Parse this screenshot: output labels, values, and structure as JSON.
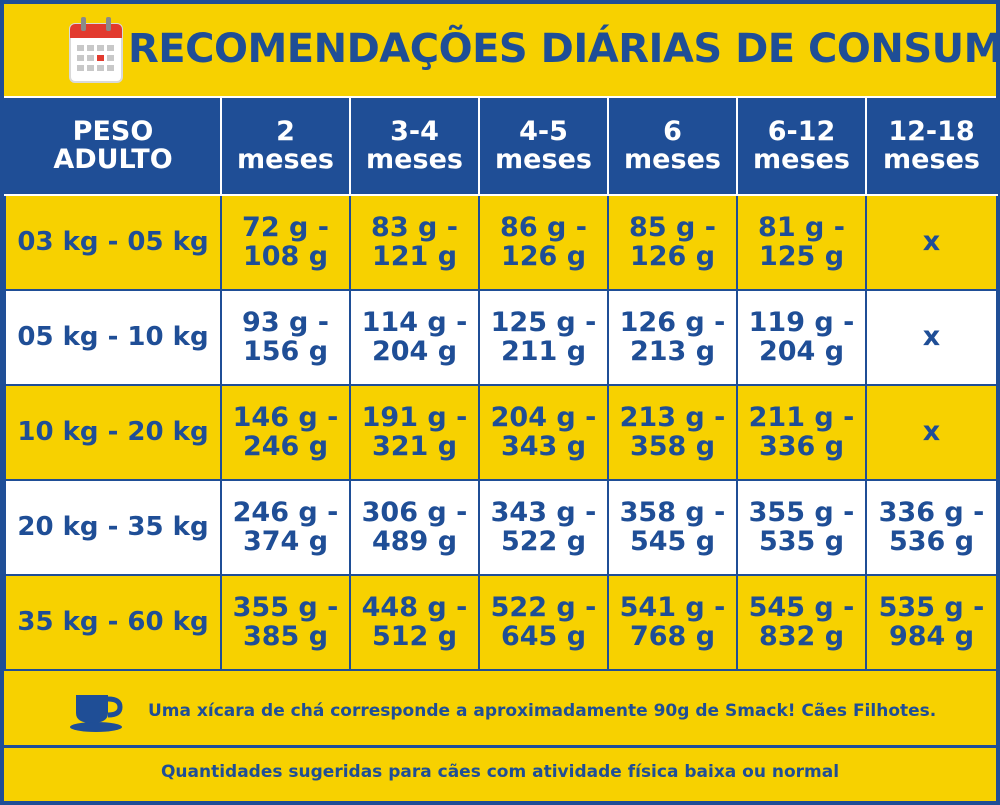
{
  "title": "RECOMENDAÇÕES DIÁRIAS DE CONSUMO",
  "icons": {
    "title_icon": "calendar-icon",
    "note_icon": "teacup-icon"
  },
  "colors": {
    "brand_blue": "#1f4e96",
    "brand_yellow": "#f7d100",
    "white": "#ffffff",
    "calendar_red": "#e23a2e"
  },
  "table": {
    "headers": [
      [
        "PESO",
        "ADULTO"
      ],
      [
        "2",
        "meses"
      ],
      [
        "3-4",
        "meses"
      ],
      [
        "4-5",
        "meses"
      ],
      [
        "6",
        "meses"
      ],
      [
        "6-12",
        "meses"
      ],
      [
        "12-18",
        "meses"
      ]
    ],
    "rows": [
      {
        "weight": "03 kg - 05 kg",
        "cells": [
          [
            "72 g -",
            "108 g"
          ],
          [
            "83 g -",
            "121 g"
          ],
          [
            "86 g -",
            "126 g"
          ],
          [
            "85 g -",
            "126 g"
          ],
          [
            "81 g -",
            "125 g"
          ],
          [
            "x",
            ""
          ]
        ]
      },
      {
        "weight": "05 kg - 10 kg",
        "cells": [
          [
            "93 g -",
            "156 g"
          ],
          [
            "114 g -",
            "204 g"
          ],
          [
            "125 g -",
            "211 g"
          ],
          [
            "126 g -",
            "213 g"
          ],
          [
            "119 g -",
            "204 g"
          ],
          [
            "x",
            ""
          ]
        ]
      },
      {
        "weight": "10 kg - 20 kg",
        "cells": [
          [
            "146 g -",
            "246 g"
          ],
          [
            "191 g -",
            "321 g"
          ],
          [
            "204 g -",
            "343 g"
          ],
          [
            "213 g -",
            "358 g"
          ],
          [
            "211 g -",
            "336 g"
          ],
          [
            "x",
            ""
          ]
        ]
      },
      {
        "weight": "20 kg - 35 kg",
        "cells": [
          [
            "246 g -",
            "374 g"
          ],
          [
            "306 g -",
            "489 g"
          ],
          [
            "343 g -",
            "522 g"
          ],
          [
            "358 g -",
            "545 g"
          ],
          [
            "355 g -",
            "535 g"
          ],
          [
            "336 g -",
            "536 g"
          ]
        ]
      },
      {
        "weight": "35 kg - 60 kg",
        "cells": [
          [
            "355 g -",
            "385 g"
          ],
          [
            "448 g -",
            "512 g"
          ],
          [
            "522 g -",
            "645 g"
          ],
          [
            "541 g -",
            "768 g"
          ],
          [
            "545 g -",
            "832 g"
          ],
          [
            "535 g -",
            "984 g"
          ]
        ]
      }
    ]
  },
  "note": "Uma xícara de chá corresponde a aproximadamente 90g de Smack! Cães Filhotes.",
  "footer": "Quantidades sugeridas para cães com atividade física baixa ou normal"
}
